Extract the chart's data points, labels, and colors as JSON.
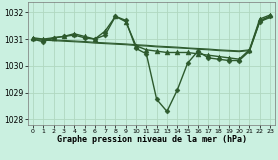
{
  "title": "Graphe pression niveau de la mer (hPa)",
  "bg_color": "#caf0e0",
  "grid_color": "#b0d8c0",
  "line_color": "#2d5a2d",
  "xlim": [
    -0.5,
    23.5
  ],
  "ylim": [
    1027.8,
    1032.4
  ],
  "yticks": [
    1028,
    1029,
    1030,
    1031,
    1032
  ],
  "xticks": [
    0,
    1,
    2,
    3,
    4,
    5,
    6,
    7,
    8,
    9,
    10,
    11,
    12,
    13,
    14,
    15,
    16,
    17,
    18,
    19,
    20,
    21,
    22,
    23
  ],
  "series": [
    {
      "x": [
        0,
        1,
        2,
        3,
        4,
        5,
        6,
        7,
        8,
        9,
        10,
        11,
        12,
        13,
        14,
        15,
        16,
        17,
        18,
        19,
        20,
        21,
        22,
        23
      ],
      "y": [
        1031.0,
        1030.9,
        1031.05,
        1031.1,
        1031.15,
        1031.05,
        1031.0,
        1031.15,
        1031.85,
        1031.7,
        1030.65,
        1030.45,
        1028.75,
        1028.3,
        1029.1,
        1030.1,
        1030.55,
        1030.3,
        1030.25,
        1030.2,
        1030.2,
        1030.55,
        1031.65,
        1031.85
      ],
      "marker": "D",
      "markersize": 2.5,
      "linewidth": 1.0
    },
    {
      "x": [
        0,
        1,
        2,
        3,
        4,
        5,
        6,
        7,
        8,
        9,
        10,
        11,
        12,
        13,
        14,
        15,
        16,
        17,
        18,
        19,
        20,
        21,
        22,
        23
      ],
      "y": [
        1031.05,
        1031.0,
        1031.05,
        1031.1,
        1031.2,
        1031.1,
        1031.0,
        1031.3,
        1031.85,
        1031.65,
        1030.75,
        1030.6,
        1030.55,
        1030.5,
        1030.5,
        1030.5,
        1030.45,
        1030.4,
        1030.35,
        1030.3,
        1030.25,
        1030.6,
        1031.75,
        1031.9
      ],
      "marker": "^",
      "markersize": 3.5,
      "linewidth": 1.0
    },
    {
      "x": [
        0,
        1,
        2,
        3,
        4,
        5,
        6,
        7,
        8,
        9,
        10,
        11,
        12,
        13,
        14,
        15,
        16,
        17,
        18,
        19,
        20,
        21,
        22,
        23
      ],
      "y": [
        1031.02,
        1030.99,
        1030.97,
        1030.95,
        1030.93,
        1030.91,
        1030.88,
        1030.86,
        1030.84,
        1030.82,
        1030.79,
        1030.77,
        1030.74,
        1030.72,
        1030.7,
        1030.67,
        1030.65,
        1030.63,
        1030.6,
        1030.58,
        1030.56,
        1030.6,
        1031.7,
        1031.85
      ],
      "marker": "",
      "markersize": 0,
      "linewidth": 0.8
    },
    {
      "x": [
        0,
        1,
        2,
        3,
        4,
        5,
        6,
        7,
        8,
        9,
        10,
        11,
        12,
        13,
        14,
        15,
        16,
        17,
        18,
        19,
        20,
        21,
        22,
        23
      ],
      "y": [
        1030.98,
        1030.96,
        1030.94,
        1030.92,
        1030.9,
        1030.88,
        1030.85,
        1030.83,
        1030.81,
        1030.79,
        1030.76,
        1030.74,
        1030.71,
        1030.69,
        1030.67,
        1030.65,
        1030.62,
        1030.6,
        1030.57,
        1030.55,
        1030.53,
        1030.57,
        1031.65,
        1031.8
      ],
      "marker": "",
      "markersize": 0,
      "linewidth": 0.8
    }
  ]
}
